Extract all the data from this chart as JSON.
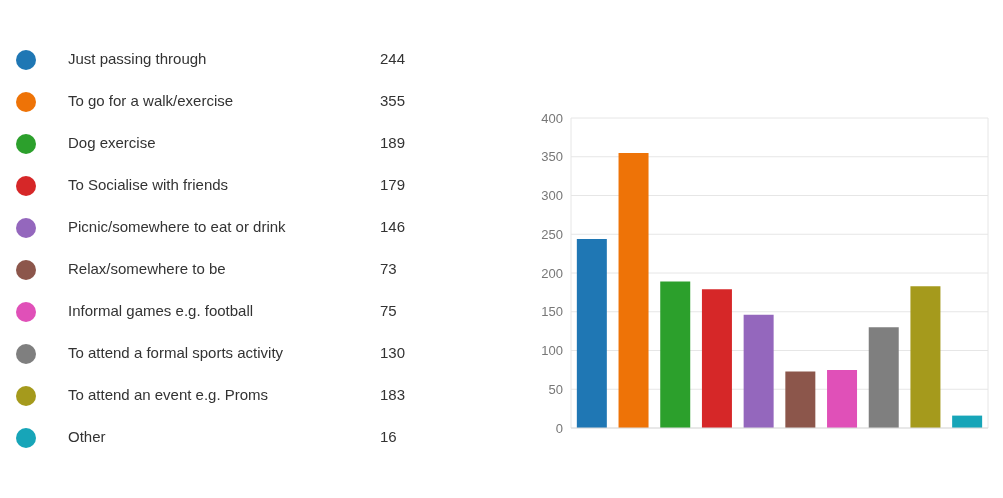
{
  "chart_data": {
    "type": "bar",
    "stacked": true,
    "categories": [
      null,
      null,
      null,
      null,
      null,
      null,
      null,
      null,
      null,
      null
    ],
    "series": [
      {
        "name": "Just passing through",
        "color": "#1f77b4",
        "values": [
          244,
          null,
          null,
          null,
          null,
          null,
          null,
          null,
          null,
          null
        ]
      },
      {
        "name": "To go for a walk/exercise",
        "color": "#ee7307",
        "values": [
          null,
          355,
          null,
          null,
          null,
          null,
          null,
          null,
          null,
          null
        ]
      },
      {
        "name": "Dog exercise",
        "color": "#2ca02c",
        "values": [
          null,
          null,
          189,
          null,
          null,
          null,
          null,
          null,
          null,
          null
        ]
      },
      {
        "name": "To Socialise with friends",
        "color": "#d62728",
        "values": [
          null,
          null,
          null,
          179,
          null,
          null,
          null,
          null,
          null,
          null
        ]
      },
      {
        "name": "Picnic/somewhere to eat or drink",
        "color": "#9467bd",
        "values": [
          null,
          null,
          null,
          null,
          146,
          null,
          null,
          null,
          null,
          null
        ]
      },
      {
        "name": "Relax/somewhere to be",
        "color": "#8c564b",
        "values": [
          null,
          null,
          null,
          null,
          null,
          73,
          null,
          null,
          null,
          null
        ]
      },
      {
        "name": "Informal games e.g. football",
        "color": "#e050b8",
        "values": [
          null,
          null,
          null,
          null,
          null,
          null,
          75,
          null,
          null,
          null
        ]
      },
      {
        "name": "To attend a formal sports activity",
        "color": "#7f7f7f",
        "values": [
          null,
          null,
          null,
          null,
          null,
          null,
          null,
          130,
          null,
          null
        ]
      },
      {
        "name": "To attend an event e.g. Proms",
        "color": "#a59a1c",
        "values": [
          null,
          null,
          null,
          null,
          null,
          null,
          null,
          null,
          183,
          null
        ]
      },
      {
        "name": "Other",
        "color": "#17a5b8",
        "values": [
          null,
          null,
          null,
          null,
          null,
          null,
          null,
          null,
          null,
          16
        ]
      }
    ],
    "ylim": [
      0,
      400
    ],
    "yticks": [
      0,
      50,
      100,
      150,
      200,
      250,
      300,
      350,
      400
    ],
    "annotations": [
      "244",
      "355",
      "189",
      "179",
      "146",
      "73",
      "75",
      "130",
      "183",
      "16"
    ],
    "grid": true,
    "legend": "left",
    "tick_labels": "y"
  }
}
